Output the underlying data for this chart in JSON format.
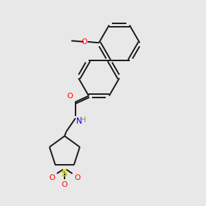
{
  "bg_color": "#e8e8e8",
  "bond_color": "#1a1a1a",
  "atom_colors": {
    "O": "#ff0000",
    "N": "#0000ee",
    "S": "#cccc00",
    "H": "#808080"
  },
  "lw": 1.5,
  "dbo": 0.008
}
